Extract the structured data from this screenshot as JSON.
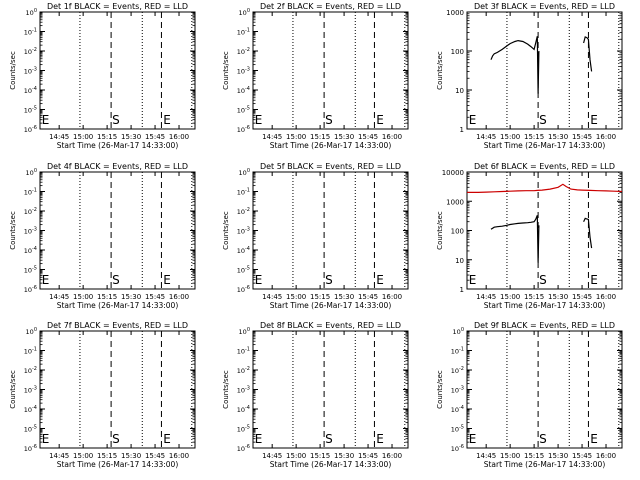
{
  "chart_data": [
    {
      "type": "line",
      "title": "Det 1f BLACK = Events, RED = LLD",
      "xlabel": "Start Time (26-Mar-17 14:33:00)",
      "ylabel": "Counts/sec",
      "x_ticks": [
        "14:45",
        "15:00",
        "15:15",
        "15:30",
        "15:45",
        "16:00"
      ],
      "y_scale": "log",
      "y_ticks": [
        "10^0",
        "10^-1",
        "10^-2",
        "10^-3",
        "10^-4",
        "10^-5",
        "10^-6"
      ],
      "markers": [
        "E",
        "S",
        "E"
      ],
      "series": []
    },
    {
      "type": "line",
      "title": "Det 2f BLACK = Events, RED = LLD",
      "xlabel": "Start Time (26-Mar-17 14:33:00)",
      "ylabel": "Counts/sec",
      "x_ticks": [
        "14:45",
        "15:00",
        "15:15",
        "15:30",
        "15:45",
        "16:00"
      ],
      "y_scale": "log",
      "y_ticks": [
        "10^0",
        "10^-1",
        "10^-2",
        "10^-3",
        "10^-4",
        "10^-5",
        "10^-6"
      ],
      "markers": [
        "E",
        "S",
        "E"
      ],
      "series": []
    },
    {
      "type": "line",
      "title": "Det 3f BLACK = Events, RED = LLD",
      "xlabel": "Start Time (26-Mar-17 14:33:00)",
      "ylabel": "Counts/sec",
      "x_ticks": [
        "14:45",
        "15:00",
        "15:15",
        "15:30",
        "15:45",
        "16:00"
      ],
      "y_scale": "log",
      "y_ticks": [
        "1",
        "10",
        "100",
        "1000"
      ],
      "markers": [
        "E",
        "S",
        "E"
      ],
      "series": [
        {
          "color": "#000000",
          "segments": [
            [
              [
                "14:48",
                60
              ],
              [
                "14:49",
                75
              ],
              [
                "14:50",
                85
              ],
              [
                "14:52",
                92
              ],
              [
                "14:55",
                110
              ],
              [
                "14:58",
                135
              ],
              [
                "15:00",
                155
              ],
              [
                "15:03",
                175
              ],
              [
                "15:05",
                185
              ],
              [
                "15:08",
                175
              ],
              [
                "15:11",
                150
              ],
              [
                "15:13",
                130
              ],
              [
                "15:15",
                110
              ],
              [
                "15:16",
                160
              ],
              [
                "15:17",
                240
              ],
              [
                "15:17.5",
                8
              ],
              [
                "15:18",
                100
              ]
            ],
            [
              [
                "15:46",
                160
              ],
              [
                "15:47",
                230
              ],
              [
                "15:48",
                220
              ],
              [
                "15:49",
                200
              ],
              [
                "15:50",
                60
              ],
              [
                "15:51",
                30
              ]
            ]
          ]
        }
      ]
    },
    {
      "type": "line",
      "title": "Det 4f BLACK = Events, RED = LLD",
      "xlabel": "Start Time (26-Mar-17 14:33:00)",
      "ylabel": "Counts/sec",
      "x_ticks": [
        "14:45",
        "15:00",
        "15:15",
        "15:30",
        "15:45",
        "16:00"
      ],
      "y_scale": "log",
      "y_ticks": [
        "10^0",
        "10^-1",
        "10^-2",
        "10^-3",
        "10^-4",
        "10^-5",
        "10^-6"
      ],
      "markers": [
        "E",
        "S",
        "E"
      ],
      "series": []
    },
    {
      "type": "line",
      "title": "Det 5f BLACK = Events, RED = LLD",
      "xlabel": "Start Time (26-Mar-17 14:33:00)",
      "ylabel": "Counts/sec",
      "x_ticks": [
        "14:45",
        "15:00",
        "15:15",
        "15:30",
        "15:45",
        "16:00"
      ],
      "y_scale": "log",
      "y_ticks": [
        "10^0",
        "10^-1",
        "10^-2",
        "10^-3",
        "10^-4",
        "10^-5",
        "10^-6"
      ],
      "markers": [
        "E",
        "S",
        "E"
      ],
      "series": []
    },
    {
      "type": "line",
      "title": "Det 6f BLACK = Events, RED = LLD",
      "xlabel": "Start Time (26-Mar-17 14:33:00)",
      "ylabel": "Counts/sec",
      "x_ticks": [
        "14:45",
        "15:00",
        "15:15",
        "15:30",
        "15:45",
        "16:00"
      ],
      "y_scale": "log",
      "y_ticks": [
        "1",
        "10",
        "100",
        "1000",
        "10000"
      ],
      "markers": [
        "E",
        "S",
        "E"
      ],
      "series": [
        {
          "color": "#cc0000",
          "segments": [
            [
              [
                "14:33",
                2000
              ],
              [
                "14:40",
                2000
              ],
              [
                "14:45",
                2050
              ],
              [
                "14:50",
                2100
              ],
              [
                "14:55",
                2150
              ],
              [
                "15:00",
                2200
              ],
              [
                "15:05",
                2250
              ],
              [
                "15:10",
                2300
              ],
              [
                "15:15",
                2300
              ],
              [
                "15:17",
                2350
              ],
              [
                "15:20",
                2400
              ],
              [
                "15:25",
                2600
              ],
              [
                "15:30",
                3000
              ],
              [
                "15:33",
                3800
              ],
              [
                "15:35",
                3200
              ],
              [
                "15:38",
                2600
              ],
              [
                "15:42",
                2450
              ],
              [
                "15:45",
                2400
              ],
              [
                "15:50",
                2350
              ],
              [
                "15:55",
                2300
              ],
              [
                "16:00",
                2250
              ],
              [
                "16:05",
                2200
              ],
              [
                "16:10",
                2150
              ]
            ]
          ]
        },
        {
          "color": "#000000",
          "segments": [
            [
              [
                "14:48",
                110
              ],
              [
                "14:49",
                120
              ],
              [
                "14:50",
                130
              ],
              [
                "14:52",
                135
              ],
              [
                "14:55",
                140
              ],
              [
                "14:58",
                150
              ],
              [
                "15:00",
                160
              ],
              [
                "15:03",
                170
              ],
              [
                "15:05",
                175
              ],
              [
                "15:08",
                180
              ],
              [
                "15:11",
                185
              ],
              [
                "15:13",
                190
              ],
              [
                "15:15",
                200
              ],
              [
                "15:16",
                240
              ],
              [
                "15:17",
                330
              ],
              [
                "15:17.5",
                8
              ],
              [
                "15:18",
                150
              ]
            ],
            [
              [
                "15:46",
                200
              ],
              [
                "15:47",
                260
              ],
              [
                "15:48",
                250
              ],
              [
                "15:49",
                240
              ],
              [
                "15:50",
                60
              ],
              [
                "15:51",
                25
              ]
            ]
          ]
        }
      ]
    },
    {
      "type": "line",
      "title": "Det 7f BLACK = Events, RED = LLD",
      "xlabel": "Start Time (26-Mar-17 14:33:00)",
      "ylabel": "Counts/sec",
      "x_ticks": [
        "14:45",
        "15:00",
        "15:15",
        "15:30",
        "15:45",
        "16:00"
      ],
      "y_scale": "log",
      "y_ticks": [
        "10^0",
        "10^-1",
        "10^-2",
        "10^-3",
        "10^-4",
        "10^-5",
        "10^-6"
      ],
      "markers": [
        "E",
        "S",
        "E"
      ],
      "series": []
    },
    {
      "type": "line",
      "title": "Det 8f BLACK = Events, RED = LLD",
      "xlabel": "Start Time (26-Mar-17 14:33:00)",
      "ylabel": "Counts/sec",
      "x_ticks": [
        "14:45",
        "15:00",
        "15:15",
        "15:30",
        "15:45",
        "16:00"
      ],
      "y_scale": "log",
      "y_ticks": [
        "10^0",
        "10^-1",
        "10^-2",
        "10^-3",
        "10^-4",
        "10^-5",
        "10^-6"
      ],
      "markers": [
        "E",
        "S",
        "E"
      ],
      "series": []
    },
    {
      "type": "line",
      "title": "Det 9f BLACK = Events, RED = LLD",
      "xlabel": "Start Time (26-Mar-17 14:33:00)",
      "ylabel": "Counts/sec",
      "x_ticks": [
        "14:45",
        "15:00",
        "15:15",
        "15:30",
        "15:45",
        "16:00"
      ],
      "y_scale": "log",
      "y_ticks": [
        "10^0",
        "10^-1",
        "10^-2",
        "10^-3",
        "10^-4",
        "10^-5",
        "10^-6"
      ],
      "markers": [
        "E",
        "S",
        "E"
      ],
      "series": []
    }
  ]
}
